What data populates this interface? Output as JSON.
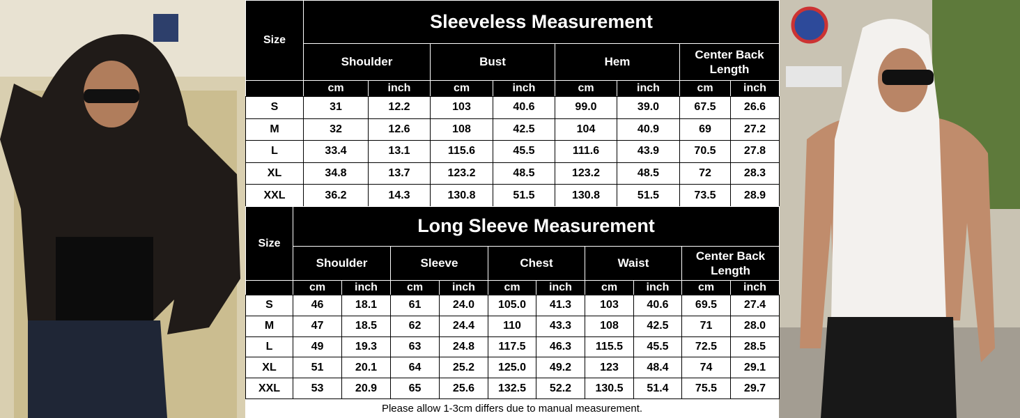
{
  "tables": [
    {
      "title": "Sleeveless Measurement",
      "size_header": "Size",
      "columns": [
        {
          "label": "Shoulder",
          "units": [
            "cm",
            "inch"
          ]
        },
        {
          "label": "Bust",
          "units": [
            "cm",
            "inch"
          ]
        },
        {
          "label": "Hem",
          "units": [
            "cm",
            "inch"
          ]
        },
        {
          "label": "Center Back Length",
          "units": [
            "cm",
            "inch"
          ]
        }
      ],
      "rows": [
        [
          "S",
          "31",
          "12.2",
          "103",
          "40.6",
          "99.0",
          "39.0",
          "67.5",
          "26.6"
        ],
        [
          "M",
          "32",
          "12.6",
          "108",
          "42.5",
          "104",
          "40.9",
          "69",
          "27.2"
        ],
        [
          "L",
          "33.4",
          "13.1",
          "115.6",
          "45.5",
          "111.6",
          "43.9",
          "70.5",
          "27.8"
        ],
        [
          "XL",
          "34.8",
          "13.7",
          "123.2",
          "48.5",
          "123.2",
          "48.5",
          "72",
          "28.3"
        ],
        [
          "XXL",
          "36.2",
          "14.3",
          "130.8",
          "51.5",
          "130.8",
          "51.5",
          "73.5",
          "28.9"
        ]
      ]
    },
    {
      "title": "Long Sleeve Measurement",
      "size_header": "Size",
      "columns": [
        {
          "label": "Shoulder",
          "units": [
            "cm",
            "inch"
          ]
        },
        {
          "label": "Sleeve",
          "units": [
            "cm",
            "inch"
          ]
        },
        {
          "label": "Chest",
          "units": [
            "cm",
            "inch"
          ]
        },
        {
          "label": "Waist",
          "units": [
            "cm",
            "inch"
          ]
        },
        {
          "label": "Center Back Length",
          "units": [
            "cm",
            "inch"
          ]
        }
      ],
      "rows": [
        [
          "S",
          "46",
          "18.1",
          "61",
          "24.0",
          "105.0",
          "41.3",
          "103",
          "40.6",
          "69.5",
          "27.4"
        ],
        [
          "M",
          "47",
          "18.5",
          "62",
          "24.4",
          "110",
          "43.3",
          "108",
          "42.5",
          "71",
          "28.0"
        ],
        [
          "L",
          "49",
          "19.3",
          "63",
          "24.8",
          "117.5",
          "46.3",
          "115.5",
          "45.5",
          "72.5",
          "28.5"
        ],
        [
          "XL",
          "51",
          "20.1",
          "64",
          "25.2",
          "125.0",
          "49.2",
          "123",
          "48.4",
          "74",
          "29.1"
        ],
        [
          "XXL",
          "53",
          "20.9",
          "65",
          "25.6",
          "132.5",
          "52.2",
          "130.5",
          "51.4",
          "75.5",
          "29.7"
        ]
      ]
    }
  ],
  "footnote": "Please allow 1-3cm differs due to manual measurement."
}
